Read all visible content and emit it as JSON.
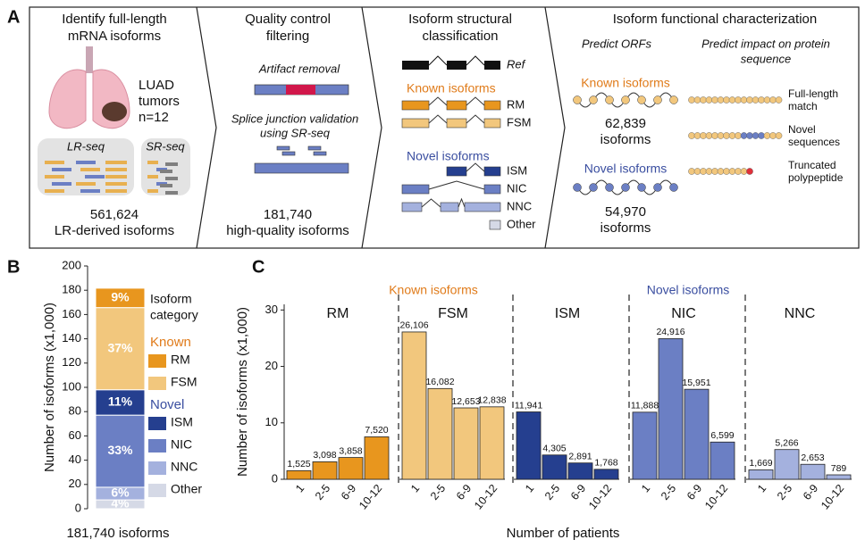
{
  "panel_a": {
    "label": "A",
    "identify": {
      "title": [
        "Identify full-length",
        "mRNA isoforms"
      ],
      "tumor": [
        "LUAD",
        "tumors",
        "n=12"
      ],
      "lr_seq": "LR-seq",
      "sr_seq": "SR-seq",
      "count": "561,624",
      "count_label": "LR-derived isoforms"
    },
    "qc": {
      "title": [
        "Quality control",
        "filtering"
      ],
      "artifact": "Artifact removal",
      "splice": [
        "Splice junction validation",
        "using SR-seq"
      ],
      "count": "181,740",
      "count_label": "high-quality isoforms"
    },
    "structural": {
      "title": [
        "Isoform structural",
        "classification"
      ],
      "ref": "Ref",
      "known": "Known isoforms",
      "novel": "Novel isoforms",
      "classes": [
        "RM",
        "FSM",
        "ISM",
        "NIC",
        "NNC",
        "Other"
      ]
    },
    "functional": {
      "title": "Isoform functional characterization",
      "orfs": "Predict ORFs",
      "impact": [
        "Predict impact on protein",
        "sequence"
      ],
      "known": "Known isoforms",
      "known_count": "62,839",
      "known_unit": "isoforms",
      "novel": "Novel isoforms",
      "novel_count": "54,970",
      "novel_unit": "isoforms",
      "outcomes": [
        [
          "Full-length",
          "match"
        ],
        [
          "Novel",
          "sequences"
        ],
        [
          "Truncated",
          "polypeptide"
        ]
      ]
    }
  },
  "chart_data": [
    {
      "type": "stacked_bar",
      "panel_label": "B",
      "ylabel": "Number of isoforms (x1,000)",
      "xlabel": "181,740 isoforms",
      "ylim": [
        0,
        200
      ],
      "yticks": [
        0,
        20,
        40,
        60,
        80,
        100,
        120,
        140,
        160,
        180,
        200
      ],
      "legend_title": [
        "Isoform",
        "category"
      ],
      "legend_groups": [
        {
          "name": "Known",
          "color": "#e07b1a"
        },
        {
          "name": "Novel",
          "color": "#3a4ea0"
        }
      ],
      "series": [
        {
          "name": "Other",
          "color": "#d5d9e6",
          "values": [
            7.3
          ],
          "segment_labels": [
            "4%"
          ]
        },
        {
          "name": "NNC",
          "color": "#a4b1de",
          "values": [
            10.4
          ],
          "segment_labels": [
            "6%"
          ]
        },
        {
          "name": "NIC",
          "color": "#6b7fc4",
          "values": [
            59.4
          ],
          "segment_labels": [
            "33%"
          ]
        },
        {
          "name": "ISM",
          "color": "#253f8f",
          "values": [
            20.9
          ],
          "segment_labels": [
            "11%"
          ]
        },
        {
          "name": "FSM",
          "color": "#f2c77d",
          "values": [
            67.7
          ],
          "segment_labels": [
            "37%"
          ]
        },
        {
          "name": "RM",
          "color": "#e8961e",
          "values": [
            16.0
          ],
          "segment_labels": [
            "9%"
          ]
        }
      ]
    },
    {
      "type": "faceted_bar",
      "panel_label": "C",
      "ylabel": "Number of isoforms (x1,000)",
      "xlabel": "Number of patients",
      "ylim": [
        0,
        31
      ],
      "yticks": [
        0,
        10,
        20,
        30
      ],
      "categories": [
        "1",
        "2-5",
        "6-9",
        "10-12"
      ],
      "group_labels": [
        {
          "text": "Known isoforms",
          "color": "#e07b1a"
        },
        {
          "text": "Novel isoforms",
          "color": "#3a4ea0"
        }
      ],
      "panels": [
        {
          "name": "RM",
          "color": "#e8961e",
          "values": [
            1.525,
            3.098,
            3.858,
            7.52
          ],
          "value_labels": [
            "1,525",
            "3,098",
            "3,858",
            "7,520"
          ]
        },
        {
          "name": "FSM",
          "color": "#f2c77d",
          "values": [
            26.106,
            16.082,
            12.653,
            12.838
          ],
          "value_labels": [
            "26,106",
            "16,082",
            "12,653",
            "12,838"
          ]
        },
        {
          "name": "ISM",
          "color": "#253f8f",
          "values": [
            11.941,
            4.305,
            2.891,
            1.768
          ],
          "value_labels": [
            "11,941",
            "4,305",
            "2,891",
            "1,768"
          ]
        },
        {
          "name": "NIC",
          "color": "#6b7fc4",
          "values": [
            11.888,
            24.916,
            15.951,
            6.599
          ],
          "value_labels": [
            "11,888",
            "24,916",
            "15,951",
            "6,599"
          ]
        },
        {
          "name": "NNC",
          "color": "#a4b1de",
          "values": [
            1.669,
            5.266,
            2.653,
            0.789
          ],
          "value_labels": [
            "1,669",
            "5,266",
            "2,653",
            "789"
          ]
        }
      ]
    }
  ]
}
